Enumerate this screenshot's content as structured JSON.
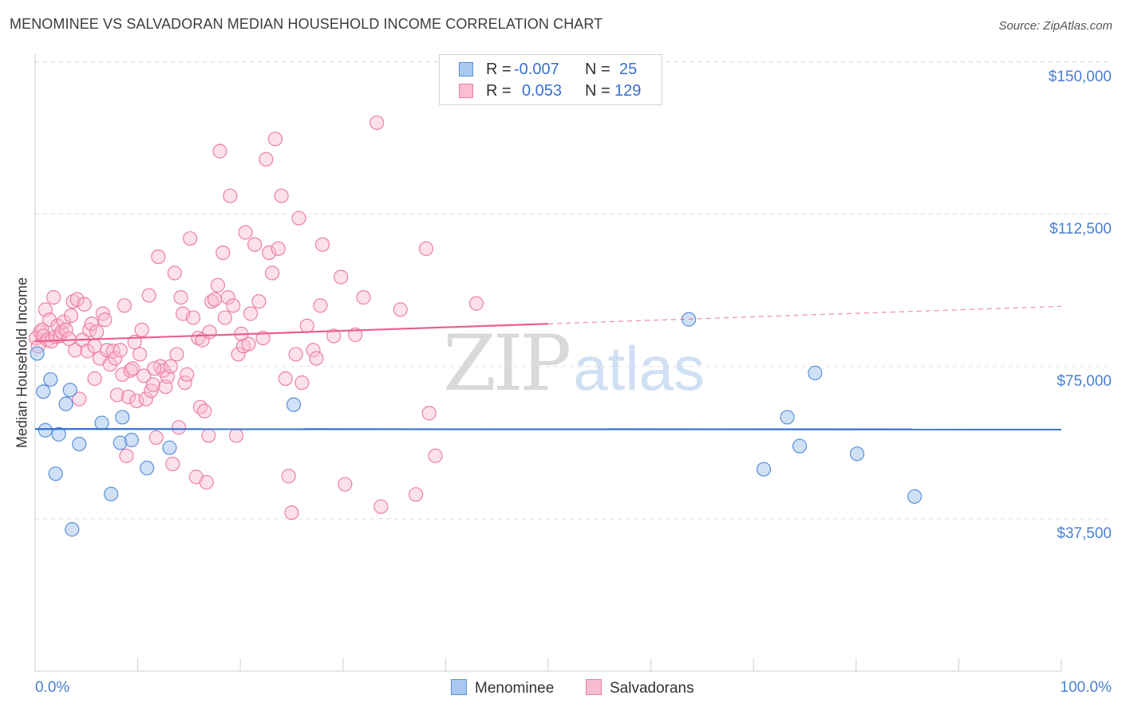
{
  "title": "MENOMINEE VS SALVADORAN MEDIAN HOUSEHOLD INCOME CORRELATION CHART",
  "source": "Source: ZipAtlas.com",
  "watermark": {
    "part1": "ZIP",
    "part2": "atlas"
  },
  "colors": {
    "menominee_fill": "#a9c8f0",
    "menominee_stroke": "#5b8fd8",
    "menominee_line": "#2f6fce",
    "salvadoran_fill": "#f8bdd0",
    "salvadoran_stroke": "#ec7fa4",
    "salvadoran_line": "#e8608c",
    "tick_label": "#4a7fd0",
    "grid": "#dedede"
  },
  "legend": {
    "rows": [
      {
        "r_label": "R =",
        "r_value": "-0.007",
        "n_label": "N =",
        "n_value": "25"
      },
      {
        "r_label": "R =",
        "r_value": "0.053",
        "n_label": "N =",
        "n_value": "129"
      }
    ]
  },
  "bottom_legend": {
    "menominee": "Menominee",
    "salvadorans": "Salvadorans"
  },
  "chart_data": {
    "type": "scatter",
    "title": "MENOMINEE VS SALVADORAN MEDIAN HOUSEHOLD INCOME CORRELATION CHART",
    "xlabel": "",
    "ylabel": "Median Household Income",
    "xlim": [
      0,
      100
    ],
    "ylim": [
      0,
      155000
    ],
    "x_tick_labels": [
      "0.0%",
      "100.0%"
    ],
    "y_ticks": [
      37500,
      75000,
      112500,
      150000
    ],
    "y_tick_labels": [
      "$37,500",
      "$75,000",
      "$112,500",
      "$150,000"
    ],
    "grid": "horizontal dashed",
    "legend_position": "top-center",
    "series": [
      {
        "name": "Menominee",
        "r": -0.007,
        "n": 25,
        "trend": {
          "x": [
            0,
            100
          ],
          "y": [
            59600,
            59500
          ]
        },
        "points": [
          [
            0.2,
            78200
          ],
          [
            0.8,
            68800
          ],
          [
            1.0,
            59300
          ],
          [
            1.5,
            71800
          ],
          [
            2.0,
            48600
          ],
          [
            2.3,
            58300
          ],
          [
            3.0,
            65800
          ],
          [
            3.4,
            69200
          ],
          [
            3.6,
            34900
          ],
          [
            4.3,
            55900
          ],
          [
            6.5,
            61100
          ],
          [
            7.4,
            43600
          ],
          [
            8.3,
            56200
          ],
          [
            8.5,
            62500
          ],
          [
            9.4,
            56900
          ],
          [
            10.9,
            50000
          ],
          [
            13.1,
            55000
          ],
          [
            25.2,
            65600
          ],
          [
            63.7,
            86600
          ],
          [
            71.0,
            49700
          ],
          [
            73.3,
            62500
          ],
          [
            74.5,
            55400
          ],
          [
            76.0,
            73400
          ],
          [
            80.1,
            53500
          ],
          [
            85.7,
            43000
          ]
        ]
      },
      {
        "name": "Salvadorans",
        "r": 0.053,
        "n": 129,
        "trend": {
          "x": [
            0,
            100
          ],
          "y": [
            81200,
            89800
          ],
          "solid_until_x": 50
        },
        "points": [
          [
            0.1,
            82000
          ],
          [
            0.3,
            80000
          ],
          [
            0.5,
            83500
          ],
          [
            0.7,
            84000
          ],
          [
            0.8,
            82500
          ],
          [
            1.0,
            89000
          ],
          [
            1.2,
            81500
          ],
          [
            1.4,
            86500
          ],
          [
            1.6,
            81200
          ],
          [
            1.8,
            92000
          ],
          [
            2.0,
            82300
          ],
          [
            2.2,
            85000
          ],
          [
            2.4,
            82500
          ],
          [
            2.6,
            83500
          ],
          [
            2.8,
            86000
          ],
          [
            3.0,
            84000
          ],
          [
            3.3,
            81800
          ],
          [
            3.5,
            87500
          ],
          [
            3.7,
            91000
          ],
          [
            3.9,
            79000
          ],
          [
            4.1,
            91500
          ],
          [
            4.3,
            67000
          ],
          [
            4.6,
            81500
          ],
          [
            4.8,
            90300
          ],
          [
            5.1,
            78800
          ],
          [
            5.3,
            84000
          ],
          [
            5.5,
            85500
          ],
          [
            5.8,
            80000
          ],
          [
            6.0,
            83500
          ],
          [
            6.3,
            77000
          ],
          [
            6.6,
            88000
          ],
          [
            6.8,
            86500
          ],
          [
            7.0,
            79000
          ],
          [
            7.3,
            75500
          ],
          [
            7.6,
            78800
          ],
          [
            7.8,
            77000
          ],
          [
            8.0,
            68000
          ],
          [
            8.3,
            79000
          ],
          [
            8.5,
            73000
          ],
          [
            8.7,
            90000
          ],
          [
            8.9,
            53000
          ],
          [
            9.1,
            67500
          ],
          [
            9.3,
            74000
          ],
          [
            9.5,
            74500
          ],
          [
            9.7,
            81000
          ],
          [
            9.9,
            66500
          ],
          [
            10.2,
            78000
          ],
          [
            10.4,
            84000
          ],
          [
            10.6,
            72700
          ],
          [
            10.8,
            67000
          ],
          [
            11.1,
            92500
          ],
          [
            11.3,
            69000
          ],
          [
            11.5,
            70500
          ],
          [
            11.8,
            57500
          ],
          [
            12.0,
            102000
          ],
          [
            12.2,
            75000
          ],
          [
            12.5,
            74000
          ],
          [
            12.7,
            70000
          ],
          [
            12.9,
            72500
          ],
          [
            13.2,
            75000
          ],
          [
            13.4,
            51000
          ],
          [
            13.6,
            98000
          ],
          [
            13.8,
            78000
          ],
          [
            14.0,
            60000
          ],
          [
            14.2,
            92000
          ],
          [
            14.4,
            88000
          ],
          [
            14.6,
            71000
          ],
          [
            14.8,
            73000
          ],
          [
            15.1,
            106500
          ],
          [
            15.4,
            87000
          ],
          [
            15.7,
            47800
          ],
          [
            15.9,
            82000
          ],
          [
            16.1,
            65000
          ],
          [
            16.3,
            81500
          ],
          [
            16.5,
            64000
          ],
          [
            16.7,
            46500
          ],
          [
            17.0,
            83500
          ],
          [
            17.2,
            91000
          ],
          [
            17.5,
            91500
          ],
          [
            17.8,
            95000
          ],
          [
            18.0,
            128000
          ],
          [
            18.3,
            103000
          ],
          [
            18.5,
            87000
          ],
          [
            18.8,
            92000
          ],
          [
            19.0,
            117000
          ],
          [
            19.3,
            90000
          ],
          [
            19.6,
            58000
          ],
          [
            19.8,
            78000
          ],
          [
            20.1,
            83000
          ],
          [
            20.3,
            80000
          ],
          [
            20.5,
            108000
          ],
          [
            20.8,
            80500
          ],
          [
            21.0,
            88000
          ],
          [
            21.4,
            105000
          ],
          [
            21.8,
            91000
          ],
          [
            22.2,
            82000
          ],
          [
            22.5,
            126000
          ],
          [
            22.8,
            103000
          ],
          [
            23.1,
            98000
          ],
          [
            23.4,
            131000
          ],
          [
            23.7,
            104000
          ],
          [
            24.0,
            117000
          ],
          [
            24.4,
            72000
          ],
          [
            24.7,
            48000
          ],
          [
            25.0,
            39000
          ],
          [
            25.4,
            78000
          ],
          [
            25.7,
            111500
          ],
          [
            26.0,
            71000
          ],
          [
            26.5,
            85000
          ],
          [
            27.1,
            79000
          ],
          [
            27.4,
            77000
          ],
          [
            27.8,
            90000
          ],
          [
            28.0,
            105000
          ],
          [
            29.1,
            82500
          ],
          [
            29.8,
            97000
          ],
          [
            30.2,
            46000
          ],
          [
            31.2,
            82800
          ],
          [
            32.0,
            92000
          ],
          [
            33.3,
            135000
          ],
          [
            33.7,
            40500
          ],
          [
            35.6,
            89000
          ],
          [
            37.1,
            43500
          ],
          [
            38.1,
            104000
          ],
          [
            38.4,
            63500
          ],
          [
            39.0,
            53000
          ],
          [
            43.0,
            90500
          ],
          [
            5.8,
            72000
          ],
          [
            11.6,
            74500
          ],
          [
            16.9,
            58000
          ]
        ]
      }
    ]
  }
}
